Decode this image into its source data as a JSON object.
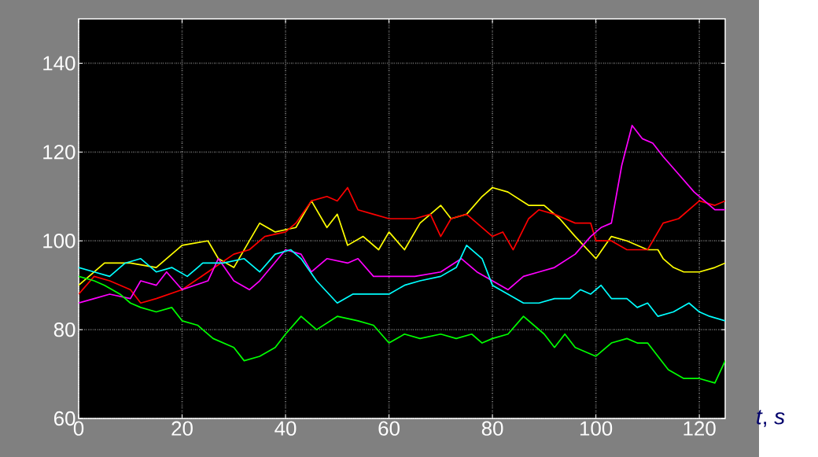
{
  "chart_data": {
    "type": "line",
    "xlabel": "*t*, *s*",
    "xlim": [
      0,
      125
    ],
    "ylim": [
      60,
      150
    ],
    "xticks": [
      0,
      20,
      40,
      60,
      80,
      100,
      120
    ],
    "yticks": [
      60,
      80,
      100,
      120,
      140
    ],
    "grid": true,
    "line_style": "solid",
    "marker": "none",
    "series": [
      {
        "color": "#ffff00",
        "x": [
          0,
          5,
          10,
          15,
          20,
          25,
          27,
          30,
          35,
          38,
          42,
          45,
          48,
          50,
          52,
          55,
          58,
          60,
          63,
          66,
          70,
          72,
          75,
          78,
          80,
          83,
          87,
          90,
          93,
          96,
          100,
          103,
          106,
          110,
          112,
          113,
          115,
          117,
          120,
          123,
          125
        ],
        "values": [
          90,
          95,
          95,
          94,
          99,
          100,
          96,
          94,
          104,
          102,
          103,
          109,
          103,
          106,
          99,
          101,
          98,
          102,
          98,
          104,
          108,
          105,
          106,
          110,
          112,
          111,
          108,
          108,
          105,
          101,
          96,
          101,
          100,
          98,
          98,
          96,
          94,
          93,
          93,
          94,
          95
        ]
      },
      {
        "color": "#ff0000",
        "x": [
          0,
          3,
          6,
          10,
          12,
          15,
          20,
          25,
          30,
          33,
          36,
          40,
          42,
          45,
          48,
          50,
          52,
          54,
          57,
          60,
          65,
          68,
          70,
          72,
          75,
          77,
          80,
          82,
          84,
          87,
          89,
          92,
          96,
          99,
          100,
          103,
          106,
          110,
          113,
          116,
          120,
          123,
          125
        ],
        "values": [
          88,
          92,
          91,
          89,
          86,
          87,
          89,
          93,
          97,
          98,
          101,
          102,
          104,
          109,
          110,
          109,
          112,
          107,
          106,
          105,
          105,
          106,
          101,
          105,
          106,
          104,
          101,
          102,
          98,
          105,
          107,
          106,
          104,
          104,
          100,
          100,
          98,
          98,
          104,
          105,
          109,
          108,
          109
        ]
      },
      {
        "color": "#ff00ff",
        "x": [
          0,
          3,
          6,
          10,
          12,
          15,
          17,
          20,
          25,
          27,
          30,
          33,
          35,
          40,
          43,
          45,
          48,
          52,
          54,
          57,
          60,
          65,
          70,
          74,
          77,
          80,
          83,
          86,
          89,
          92,
          96,
          99,
          101,
          103,
          105,
          107,
          109,
          111,
          113,
          116,
          119,
          121,
          123,
          125
        ],
        "values": [
          86,
          87,
          88,
          87,
          91,
          90,
          93,
          89,
          91,
          96,
          91,
          89,
          91,
          98,
          97,
          93,
          96,
          95,
          96,
          92,
          92,
          92,
          93,
          96,
          93,
          91,
          89,
          92,
          93,
          94,
          97,
          101,
          103,
          104,
          117,
          126,
          123,
          122,
          119,
          115,
          111,
          109,
          107,
          107
        ]
      },
      {
        "color": "#00ffff",
        "x": [
          0,
          3,
          6,
          9,
          12,
          15,
          18,
          21,
          24,
          28,
          32,
          35,
          38,
          41,
          43,
          46,
          50,
          53,
          56,
          60,
          63,
          66,
          70,
          73,
          75,
          78,
          80,
          83,
          86,
          89,
          92,
          95,
          97,
          99,
          101,
          103,
          106,
          108,
          110,
          112,
          115,
          118,
          120,
          122,
          125
        ],
        "values": [
          94,
          93,
          92,
          95,
          96,
          93,
          94,
          92,
          95,
          95,
          96,
          93,
          97,
          98,
          96,
          91,
          86,
          88,
          88,
          88,
          90,
          91,
          92,
          94,
          99,
          96,
          90,
          88,
          86,
          86,
          87,
          87,
          89,
          88,
          90,
          87,
          87,
          85,
          86,
          83,
          84,
          86,
          84,
          83,
          82
        ]
      },
      {
        "color": "#00ff00",
        "x": [
          0,
          3,
          5,
          8,
          10,
          12,
          15,
          18,
          20,
          23,
          26,
          28,
          30,
          32,
          35,
          38,
          40,
          43,
          46,
          50,
          54,
          57,
          60,
          63,
          66,
          70,
          73,
          76,
          78,
          80,
          83,
          86,
          88,
          90,
          92,
          94,
          96,
          98,
          100,
          103,
          106,
          108,
          110,
          112,
          114,
          117,
          120,
          123,
          125
        ],
        "values": [
          92,
          91,
          90,
          88,
          86,
          85,
          84,
          85,
          82,
          81,
          78,
          77,
          76,
          73,
          74,
          76,
          79,
          83,
          80,
          83,
          82,
          81,
          77,
          79,
          78,
          79,
          78,
          79,
          77,
          78,
          79,
          83,
          81,
          79,
          76,
          79,
          76,
          75,
          74,
          77,
          78,
          77,
          77,
          74,
          71,
          69,
          69,
          68,
          73
        ]
      }
    ]
  }
}
